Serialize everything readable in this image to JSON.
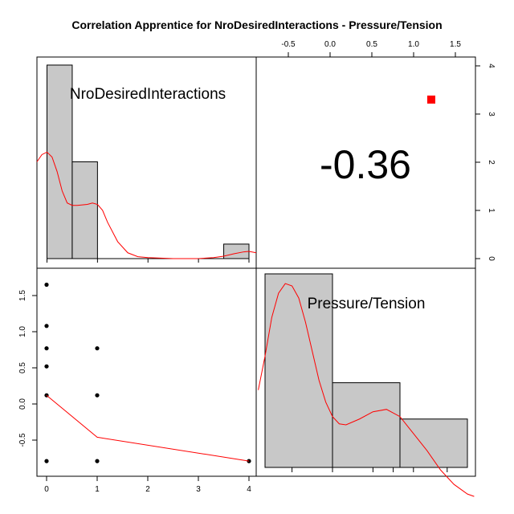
{
  "chart_data": {
    "type": "scatter",
    "title": "Correlation Apprentice for NroDesiredInteractions - Pressure/Tension",
    "variables": [
      "NroDesiredInteractions",
      "Pressure/Tension"
    ],
    "correlation": {
      "label": "-0.36",
      "value": -0.36,
      "marker_color": "#ff0000"
    },
    "histogram_x": {
      "variable": "NroDesiredInteractions",
      "bins": [
        {
          "from": 0,
          "to": 0.5,
          "count": 4
        },
        {
          "from": 0.5,
          "to": 1,
          "count": 2
        },
        {
          "from": 3.5,
          "to": 4,
          "count": 0.3
        }
      ],
      "xlim": [
        0,
        4
      ],
      "x_ticks": [
        0,
        1,
        2,
        3,
        4
      ],
      "density_curve": [
        [
          -0.2,
          2.0
        ],
        [
          -0.1,
          2.15
        ],
        [
          0,
          2.2
        ],
        [
          0.1,
          2.1
        ],
        [
          0.2,
          1.8
        ],
        [
          0.3,
          1.4
        ],
        [
          0.4,
          1.15
        ],
        [
          0.5,
          1.1
        ],
        [
          0.6,
          1.1
        ],
        [
          0.8,
          1.12
        ],
        [
          0.9,
          1.15
        ],
        [
          1.0,
          1.12
        ],
        [
          1.1,
          1.0
        ],
        [
          1.2,
          0.75
        ],
        [
          1.4,
          0.35
        ],
        [
          1.6,
          0.12
        ],
        [
          1.8,
          0.04
        ],
        [
          2.0,
          0.02
        ],
        [
          2.5,
          0.0
        ],
        [
          3.0,
          0.0
        ],
        [
          3.3,
          0.02
        ],
        [
          3.5,
          0.05
        ],
        [
          3.7,
          0.1
        ],
        [
          3.9,
          0.14
        ],
        [
          4.0,
          0.15
        ],
        [
          4.2,
          0.12
        ]
      ],
      "right_axis": {
        "ticks": [
          0,
          1,
          2,
          3,
          4
        ],
        "ylim": [
          0,
          4
        ]
      },
      "top_axis": {
        "ticks": [
          -0.5,
          0.0,
          0.5,
          1.0,
          1.5
        ],
        "labels": [
          "-0.5",
          "0.0",
          "0.5",
          "1.0",
          "1.5"
        ]
      },
      "bar_color": "#c8c8c8",
      "curve_color": "#ff0000"
    },
    "histogram_y": {
      "variable": "Pressure/Tension",
      "bins": [
        {
          "from": -0.8,
          "to": -0.3,
          "count": 4
        },
        {
          "from": -0.3,
          "to": 0.2,
          "count": 1.75
        },
        {
          "from": 0.2,
          "to": 0.7,
          "count": 1
        }
      ],
      "rug": [
        -0.6,
        -0.3,
        0.0,
        0.15,
        0.3,
        0.55
      ],
      "density_curve": [
        [
          -0.85,
          1.6
        ],
        [
          -0.8,
          2.3
        ],
        [
          -0.75,
          3.1
        ],
        [
          -0.7,
          3.6
        ],
        [
          -0.65,
          3.8
        ],
        [
          -0.6,
          3.75
        ],
        [
          -0.55,
          3.5
        ],
        [
          -0.5,
          3.0
        ],
        [
          -0.45,
          2.4
        ],
        [
          -0.4,
          1.8
        ],
        [
          -0.35,
          1.35
        ],
        [
          -0.3,
          1.05
        ],
        [
          -0.25,
          0.9
        ],
        [
          -0.2,
          0.88
        ],
        [
          -0.1,
          1.0
        ],
        [
          0.0,
          1.15
        ],
        [
          0.1,
          1.2
        ],
        [
          0.2,
          1.05
        ],
        [
          0.3,
          0.7
        ],
        [
          0.4,
          0.35
        ],
        [
          0.5,
          -0.05
        ],
        [
          0.6,
          -0.35
        ],
        [
          0.7,
          -0.55
        ],
        [
          0.75,
          -0.6
        ]
      ],
      "bar_color": "#c8c8c8",
      "curve_color": "#ff0000"
    },
    "scatter": {
      "x_label": "",
      "y_label": "",
      "xlim": [
        -0.1,
        4.1
      ],
      "ylim": [
        -0.85,
        1.7
      ],
      "x_ticks": [
        0,
        1,
        2,
        3,
        4
      ],
      "y_ticks": [
        -0.5,
        0.0,
        0.5,
        1.0,
        1.5
      ],
      "points": [
        [
          0,
          1.65
        ],
        [
          0,
          1.08
        ],
        [
          0,
          0.77
        ],
        [
          0,
          0.52
        ],
        [
          0,
          0.12
        ],
        [
          0,
          -0.79
        ],
        [
          1,
          0.77
        ],
        [
          1,
          0.12
        ],
        [
          1,
          -0.79
        ],
        [
          4,
          -0.79
        ]
      ],
      "fit_line": [
        [
          0,
          0.12
        ],
        [
          1,
          -0.46
        ],
        [
          4,
          -0.79
        ]
      ],
      "point_color": "#000000",
      "line_color": "#ff0000"
    }
  }
}
